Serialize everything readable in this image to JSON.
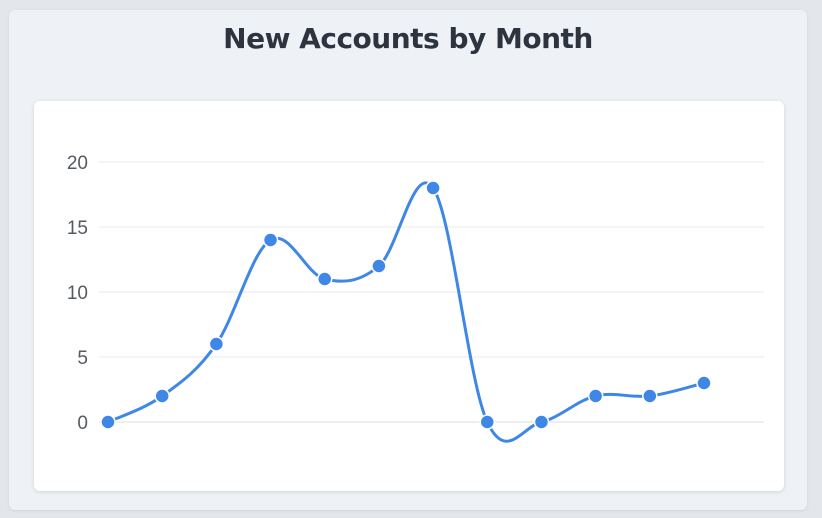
{
  "page": {
    "title": "New Accounts by Month"
  },
  "chart_data": {
    "type": "line",
    "title": "New Accounts by Month",
    "xlabel": "",
    "ylabel": "",
    "x": [
      1,
      2,
      3,
      4,
      5,
      6,
      7,
      8,
      9,
      10,
      11,
      12
    ],
    "series": [
      {
        "values": [
          0,
          2,
          6,
          14,
          11,
          12,
          18,
          0,
          0,
          2,
          2,
          3
        ]
      }
    ],
    "ylim": [
      0,
      20
    ],
    "yticks": [
      0,
      5,
      10,
      15,
      20
    ],
    "grid": true,
    "legend": "none",
    "colors": {
      "line": "#3f87e6",
      "grid": "#e8eaee"
    }
  }
}
